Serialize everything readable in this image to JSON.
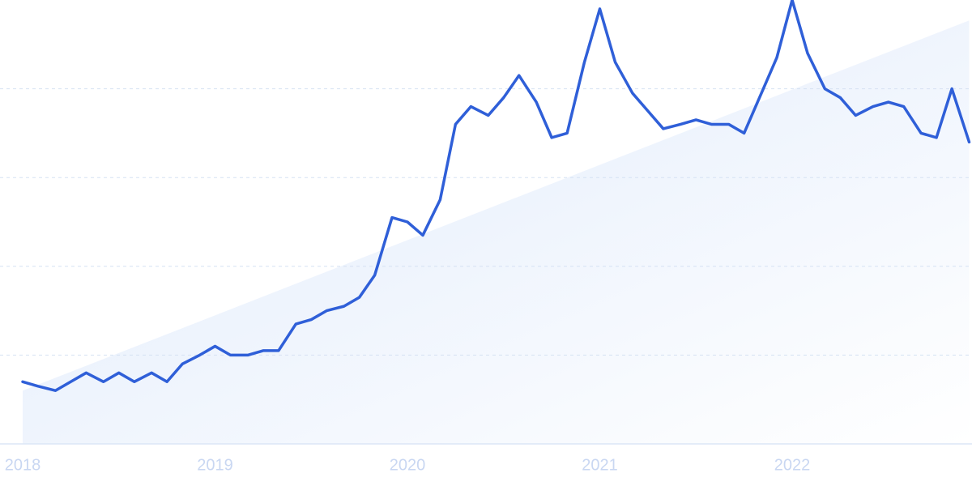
{
  "chart_data": {
    "type": "line",
    "x": [
      2018,
      2018.08,
      2018.17,
      2018.25,
      2018.33,
      2018.42,
      2018.5,
      2018.58,
      2018.67,
      2018.75,
      2018.83,
      2018.92,
      2019,
      2019.08,
      2019.17,
      2019.25,
      2019.33,
      2019.42,
      2019.5,
      2019.58,
      2019.67,
      2019.75,
      2019.83,
      2019.92,
      2020,
      2020.08,
      2020.17,
      2020.25,
      2020.33,
      2020.42,
      2020.5,
      2020.58,
      2020.67,
      2020.75,
      2020.83,
      2020.92,
      2021,
      2021.08,
      2021.17,
      2021.25,
      2021.33,
      2021.42,
      2021.5,
      2021.58,
      2021.67,
      2021.75,
      2021.83,
      2021.92,
      2022,
      2022.08,
      2022.17,
      2022.25,
      2022.33,
      2022.42,
      2022.5,
      2022.58,
      2022.67,
      2022.75,
      2022.83,
      2022.92
    ],
    "series": [
      {
        "color": "#2f5fd8",
        "values": [
          14,
          13,
          12,
          14,
          16,
          14,
          16,
          14,
          16,
          14,
          18,
          20,
          22,
          20,
          20,
          21,
          21,
          27,
          28,
          30,
          31,
          33,
          38,
          51,
          50,
          47,
          55,
          72,
          76,
          74,
          78,
          83,
          77,
          69,
          70,
          86,
          98,
          86,
          79,
          75,
          71,
          72,
          73,
          72,
          72,
          70,
          78,
          87,
          100,
          88,
          80,
          78,
          74,
          76,
          77,
          76,
          70,
          69,
          80,
          68
        ]
      }
    ],
    "trend": {
      "color": "#dce9fb",
      "values": [
        12,
        95.4
      ]
    },
    "xlim": [
      2018,
      2022.92
    ],
    "xticks": [
      2018,
      2019,
      2020,
      2021,
      2022
    ],
    "ylim": [
      0,
      100
    ],
    "yticks": [
      20,
      40,
      60,
      80
    ],
    "grid": true
  }
}
